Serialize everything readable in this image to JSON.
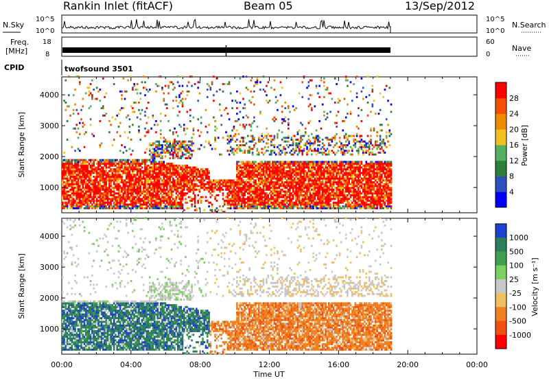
{
  "header": {
    "station": "Rankin Inlet (fitACF)",
    "beam": "Beam 05",
    "date": "13/Sep/2012"
  },
  "noise_panel": {
    "left_label": "N.Sky",
    "left_ticks": [
      "10^5",
      "10^0"
    ],
    "right_label": "N.Search",
    "right_ticks": [
      "10^5",
      "10^0"
    ]
  },
  "freq_panel": {
    "left_label_top": "Freq.",
    "left_label_unit": "[MHz]",
    "left_ticks": [
      "18",
      "8"
    ],
    "right_label": "Nave",
    "right_ticks": [
      "60",
      "0"
    ]
  },
  "cpid_panel": {
    "label": "CPID",
    "program": "twofsound 3501"
  },
  "chart_data": [
    {
      "type": "heatmap",
      "name": "power",
      "ylabel": "Slant Range [km]",
      "xlabel": "",
      "yticks": [
        "1000",
        "2000",
        "3000",
        "4000"
      ],
      "xlim": [
        0,
        24
      ],
      "ylim": [
        180,
        4580
      ],
      "data_end_hour": 19,
      "colorbar_label": "Power [dB]",
      "colorbar_ticks": [
        "4",
        "8",
        "12",
        "16",
        "20",
        "24",
        "28"
      ],
      "colorbar_colors": [
        "#0000ff",
        "#3050c0",
        "#2d7f3a",
        "#55b060",
        "#f0c020",
        "#f08a00",
        "#f45000",
        "#ff0000"
      ]
    },
    {
      "type": "heatmap",
      "name": "velocity",
      "ylabel": "Slant Range [km]",
      "xlabel": "Time UT",
      "yticks": [
        "1000",
        "2000",
        "3000",
        "4000"
      ],
      "xticks": [
        "00:00",
        "04:00",
        "08:00",
        "12:00",
        "16:00",
        "20:00",
        "00:00"
      ],
      "xlim": [
        0,
        24
      ],
      "ylim": [
        180,
        4580
      ],
      "data_end_hour": 19,
      "colorbar_label": "Velocity [m s⁻¹]",
      "colorbar_ticks": [
        "1000",
        "500",
        "100",
        "25",
        "-25",
        "-100",
        "-500",
        "-1000"
      ],
      "colorbar_colors": [
        "#2040d0",
        "#2d7f5a",
        "#3fa050",
        "#7cd060",
        "#c8c8c8",
        "#f0c060",
        "#f08020",
        "#f05010",
        "#ff0000"
      ]
    }
  ]
}
